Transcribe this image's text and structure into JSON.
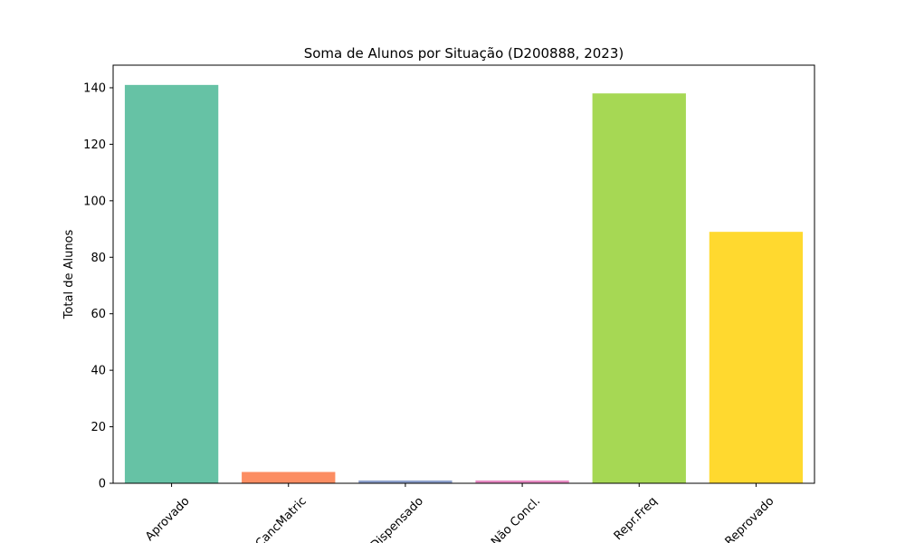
{
  "chart_data": {
    "type": "bar",
    "title": "Soma de Alunos por Situação (D200888, 2023)",
    "xlabel": "",
    "ylabel": "Total de Alunos",
    "categories": [
      "Aprovado",
      "CancMatric",
      "Dispensado",
      "Não Concl.",
      "Repr.Freq",
      "Reprovado"
    ],
    "values": [
      141,
      4,
      1,
      1,
      138,
      89
    ],
    "colors": [
      "#66c2a5",
      "#fc8d62",
      "#8da0cb",
      "#e78ac3",
      "#a6d854",
      "#ffd92f"
    ],
    "ylim": [
      0,
      148
    ],
    "yticks": [
      0,
      20,
      40,
      60,
      80,
      100,
      120,
      140
    ],
    "grid": false,
    "legend": "none"
  }
}
